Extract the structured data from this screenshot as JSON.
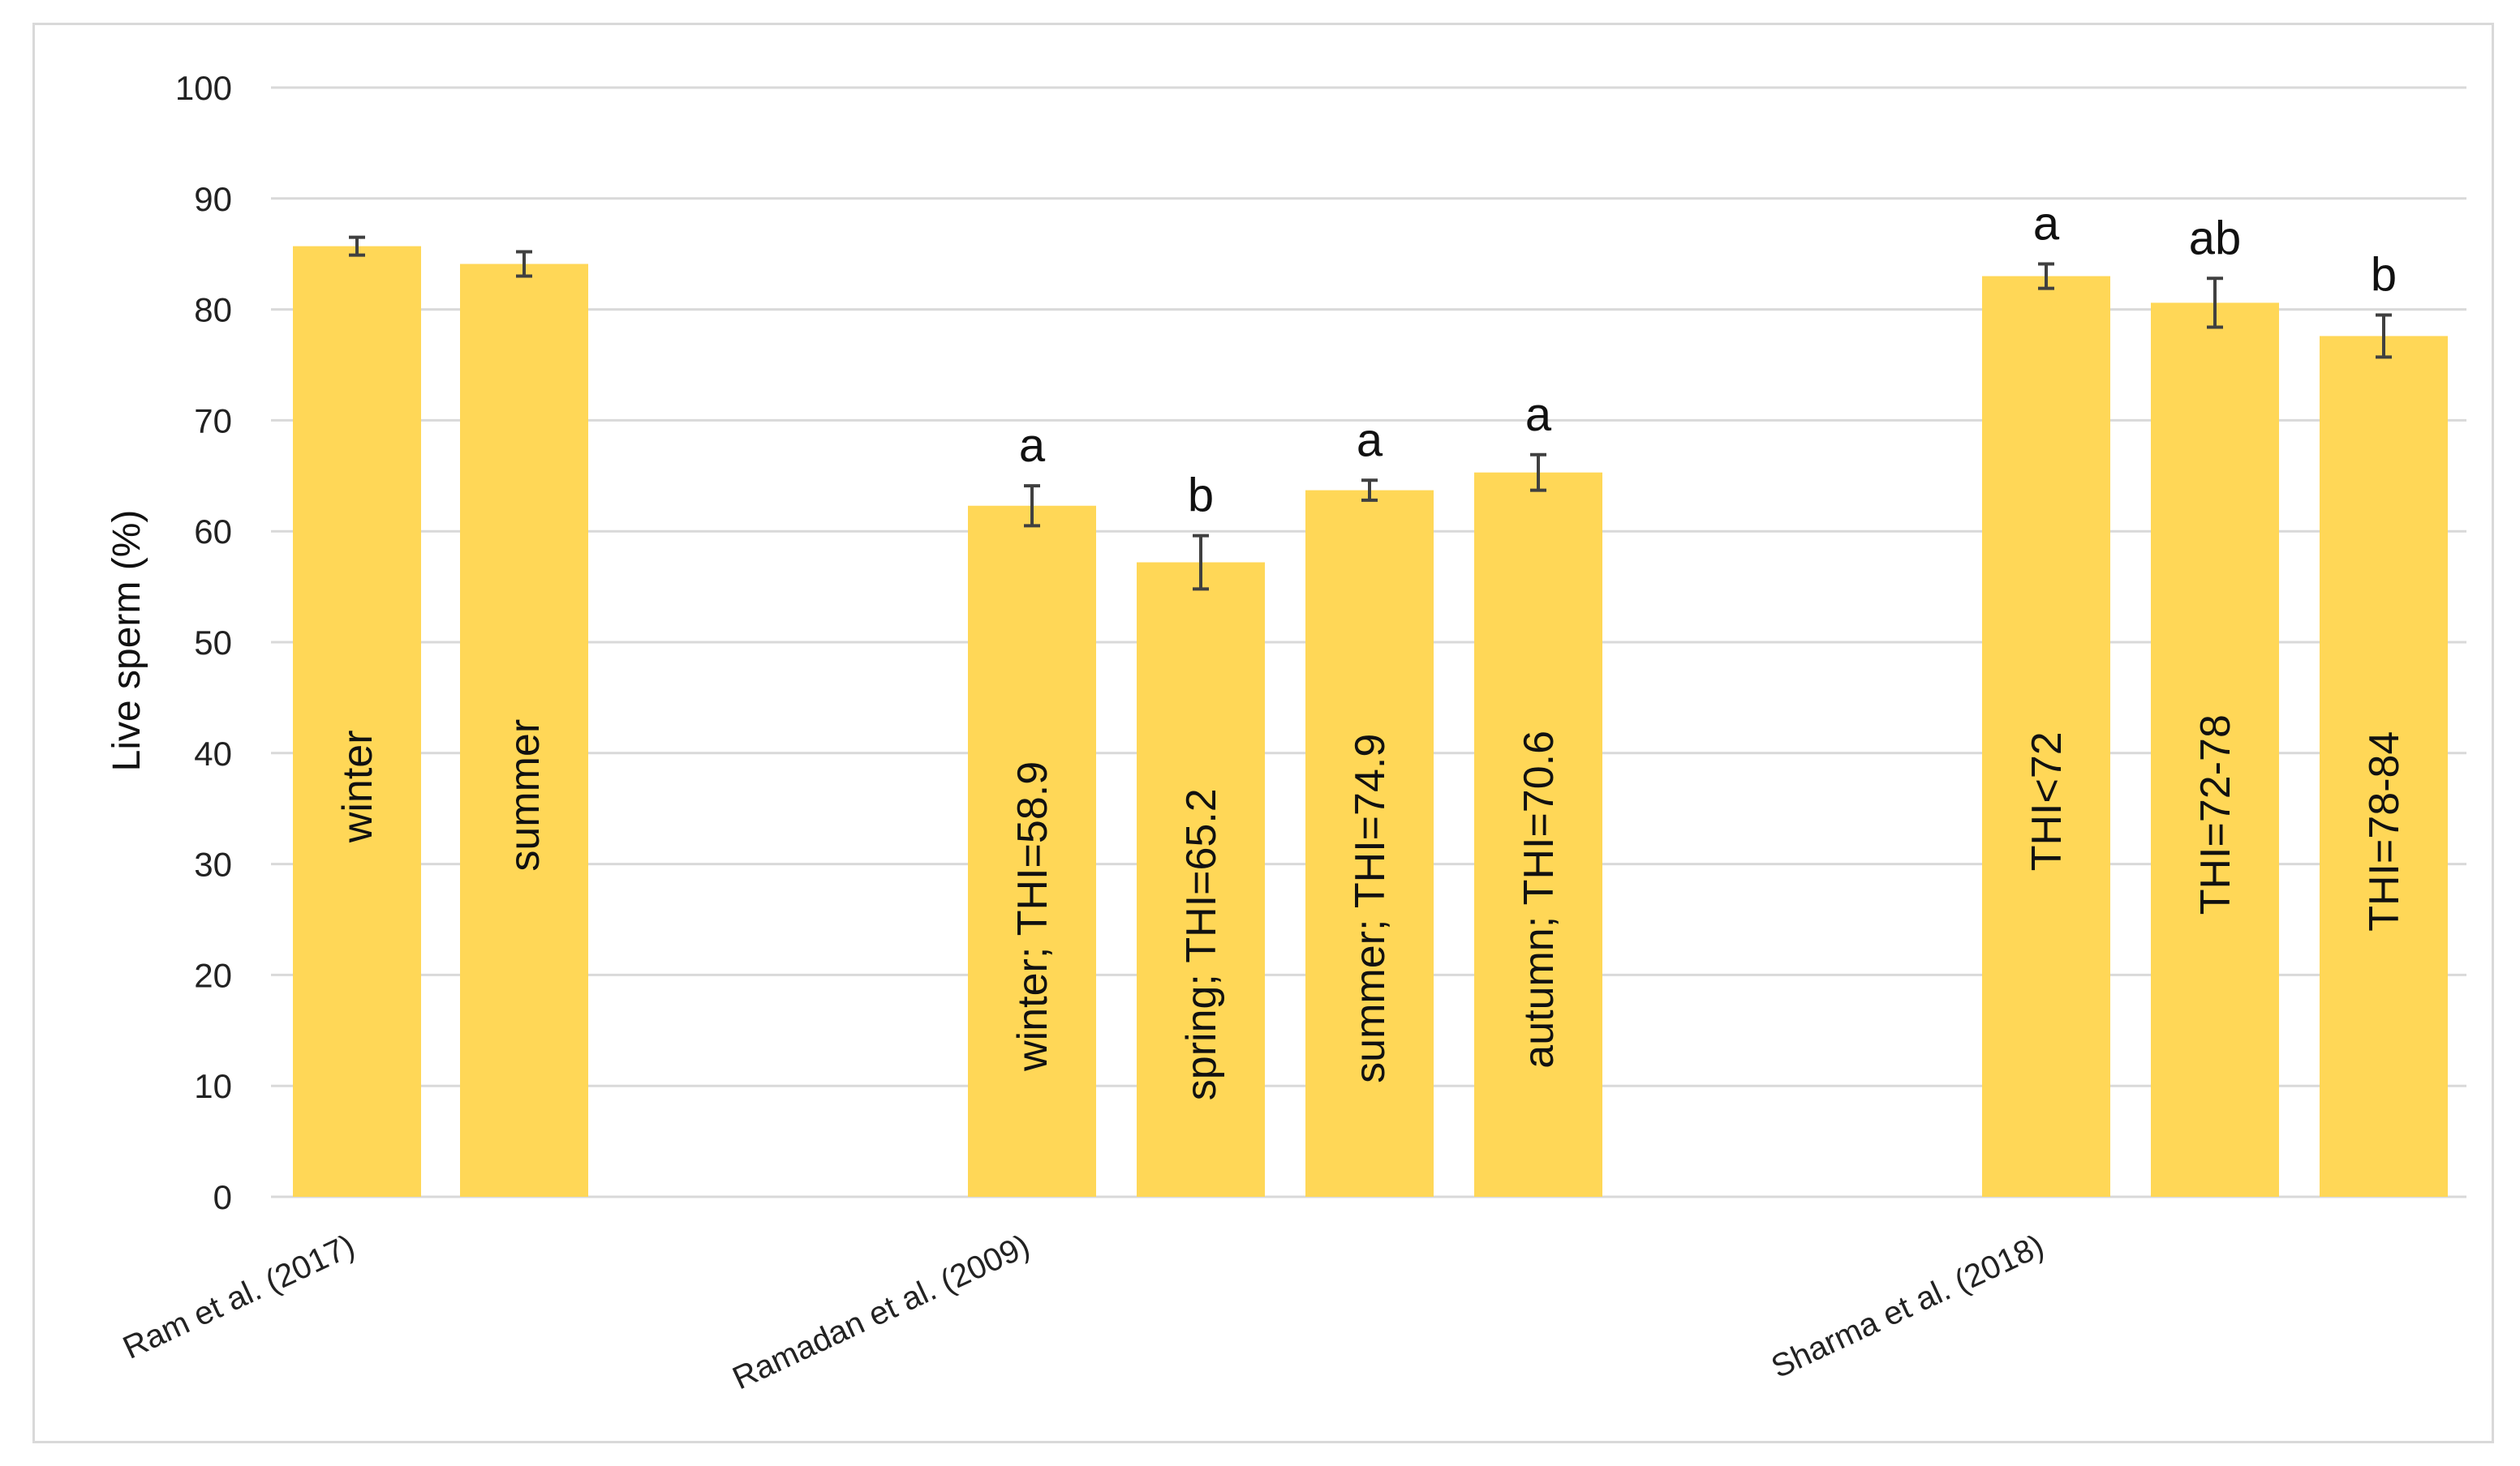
{
  "colors": {
    "bar": "#ffd757",
    "grid": "#d9d9d9",
    "error_bar": "#404040"
  },
  "chart_data": {
    "type": "bar",
    "title": "",
    "ylabel": "Live sperm (%)",
    "xlabel": "",
    "ylim": [
      0,
      100
    ],
    "yticks": [
      0,
      10,
      20,
      30,
      40,
      50,
      60,
      70,
      80,
      90,
      100
    ],
    "grid": true,
    "groups": [
      {
        "label": "Ram et al. (2017)",
        "bars": [
          {
            "label": "winter",
            "value": 85.7,
            "error": 0.8,
            "letter": ""
          },
          {
            "label": "summer",
            "value": 84.1,
            "error": 1.1,
            "letter": ""
          }
        ]
      },
      {
        "label": "Ramadan et al. (2009)",
        "bars": [
          {
            "label": "winter; THI=58.9",
            "value": 62.3,
            "error": 1.8,
            "letter": "a"
          },
          {
            "label": "spring; THI=65.2",
            "value": 57.2,
            "error": 2.4,
            "letter": "b"
          },
          {
            "label": "summer; THI=74.9",
            "value": 63.7,
            "error": 0.9,
            "letter": "a"
          },
          {
            "label": "autumn; THI=70.6",
            "value": 65.3,
            "error": 1.6,
            "letter": "a"
          }
        ]
      },
      {
        "label": "Sharma et al. (2018)",
        "bars": [
          {
            "label": "THI<72",
            "value": 83.0,
            "error": 1.1,
            "letter": "a"
          },
          {
            "label": "THI=72-78",
            "value": 80.6,
            "error": 2.2,
            "letter": "ab"
          },
          {
            "label": "THI=78-84",
            "value": 77.6,
            "error": 1.9,
            "letter": "b"
          }
        ]
      }
    ]
  }
}
